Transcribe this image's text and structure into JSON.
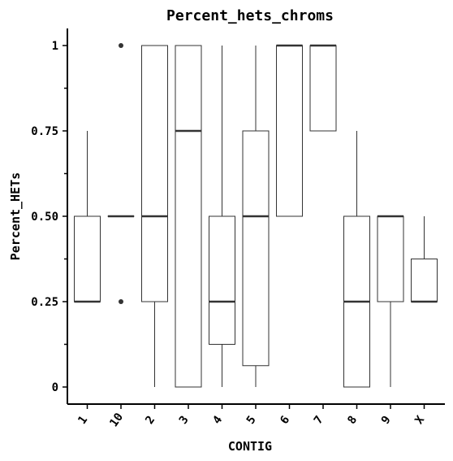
{
  "chart_data": {
    "type": "boxplot",
    "title": "Percent_hets_chroms",
    "xlabel": "CONTIG",
    "ylabel": "Percent_HETs",
    "ylim": [
      -0.05,
      1.05
    ],
    "yticks": [
      0,
      0.25,
      0.5,
      0.75,
      1
    ],
    "ytick_labels": [
      "0",
      "0.25",
      "0.50",
      "0.75",
      "1"
    ],
    "minor_yticks": [
      0.125,
      0.375,
      0.625,
      0.875
    ],
    "categories": [
      "1",
      "10",
      "2",
      "3",
      "4",
      "5",
      "6",
      "7",
      "8",
      "9",
      "X"
    ],
    "boxes": [
      {
        "category": "1",
        "whisker_low": 0.25,
        "q1": 0.25,
        "median": 0.25,
        "q3": 0.5,
        "whisker_high": 0.75,
        "outliers": []
      },
      {
        "category": "10",
        "whisker_low": 0.5,
        "q1": 0.5,
        "median": 0.5,
        "q3": 0.5,
        "whisker_high": 0.5,
        "outliers": [
          0.25,
          1.0
        ]
      },
      {
        "category": "2",
        "whisker_low": 0.0,
        "q1": 0.25,
        "median": 0.5,
        "q3": 1.0,
        "whisker_high": 1.0,
        "outliers": []
      },
      {
        "category": "3",
        "whisker_low": 0.0,
        "q1": 0.0,
        "median": 0.75,
        "q3": 1.0,
        "whisker_high": 1.0,
        "outliers": []
      },
      {
        "category": "4",
        "whisker_low": 0.0,
        "q1": 0.125,
        "median": 0.25,
        "q3": 0.5,
        "whisker_high": 1.0,
        "outliers": []
      },
      {
        "category": "5",
        "whisker_low": 0.0,
        "q1": 0.0625,
        "median": 0.5,
        "q3": 0.75,
        "whisker_high": 1.0,
        "outliers": []
      },
      {
        "category": "6",
        "whisker_low": 0.5,
        "q1": 0.5,
        "median": 1.0,
        "q3": 1.0,
        "whisker_high": 1.0,
        "outliers": []
      },
      {
        "category": "7",
        "whisker_low": 0.75,
        "q1": 0.75,
        "median": 1.0,
        "q3": 1.0,
        "whisker_high": 1.0,
        "outliers": []
      },
      {
        "category": "8",
        "whisker_low": 0.0,
        "q1": 0.0,
        "median": 0.25,
        "q3": 0.5,
        "whisker_high": 0.75,
        "outliers": []
      },
      {
        "category": "9",
        "whisker_low": 0.0,
        "q1": 0.25,
        "median": 0.5,
        "q3": 0.5,
        "whisker_high": 0.5,
        "outliers": []
      },
      {
        "category": "X",
        "whisker_low": 0.25,
        "q1": 0.25,
        "median": 0.25,
        "q3": 0.375,
        "whisker_high": 0.5,
        "outliers": []
      }
    ],
    "grid": false,
    "legend": "none",
    "colors": {
      "box_edge": "#333333",
      "box_fill": "#ffffff",
      "axis": "#000000"
    }
  }
}
